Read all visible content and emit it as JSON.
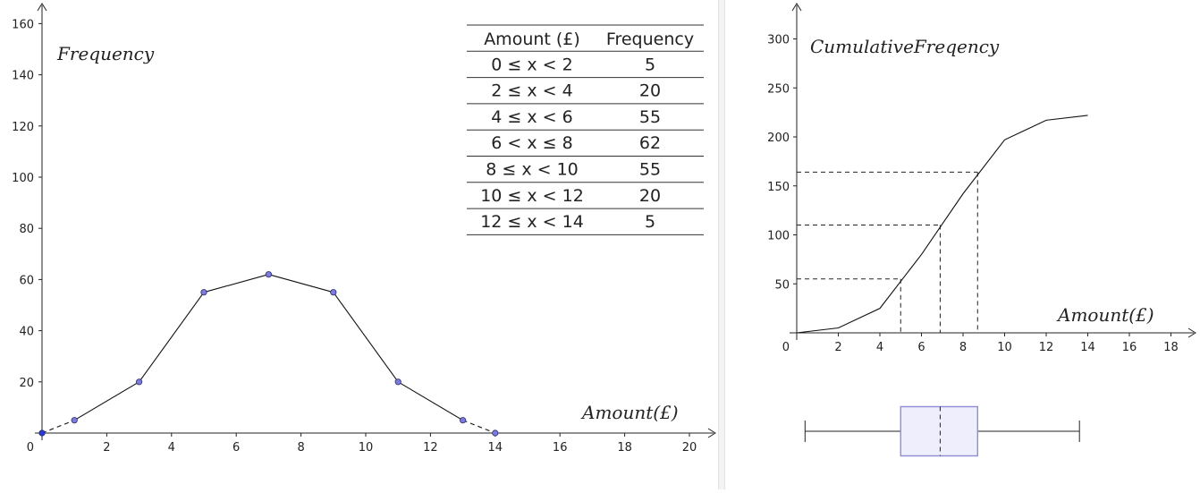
{
  "views": [
    {
      "name": "frequency-polygon",
      "axis_label_y": "Frequency",
      "axis_label_x": "Amount(£)"
    },
    {
      "name": "cumulative-frequency",
      "axis_label_y": "CumulativeFreqency",
      "axis_label_x": "Amount(£)"
    }
  ],
  "table": {
    "headers": [
      "Amount (£)",
      "Frequency"
    ],
    "rows": [
      [
        "0 ≤ x < 2",
        "5"
      ],
      [
        "2 ≤ x < 4",
        "20"
      ],
      [
        "4 ≤ x < 6",
        "55"
      ],
      [
        "6 < x ≤ 8",
        "62"
      ],
      [
        "8 ≤ x < 10",
        "55"
      ],
      [
        "10 ≤ x < 12",
        "20"
      ],
      [
        "12 ≤ x < 14",
        "5"
      ]
    ]
  },
  "chart_data": [
    {
      "type": "line",
      "title": "",
      "xlabel": "Amount(£)",
      "ylabel": "Frequency",
      "xlim": [
        0,
        20
      ],
      "ylim": [
        0,
        160
      ],
      "x_ticks": [
        2,
        4,
        6,
        8,
        10,
        12,
        14,
        16,
        18,
        20
      ],
      "y_ticks": [
        20,
        40,
        60,
        80,
        100,
        120,
        140,
        160
      ],
      "origin_label": "0",
      "series": [
        {
          "x": [
            0,
            1,
            3,
            5,
            7,
            9,
            11,
            13,
            14
          ],
          "y": [
            0,
            5,
            20,
            55,
            62,
            55,
            20,
            5,
            0
          ],
          "markers": true,
          "dashed_end_segments": true
        }
      ],
      "colors": {
        "line": "#000000",
        "marker": "#7c7cdc",
        "marker_origin": "#2a3bd1"
      }
    },
    {
      "type": "line",
      "title": "",
      "xlabel": "Amount(£)",
      "ylabel": "CumulativeFreqency",
      "xlim": [
        0,
        18.7
      ],
      "ylim": [
        0,
        300
      ],
      "x_ticks": [
        2,
        4,
        6,
        8,
        10,
        12,
        14,
        16,
        18
      ],
      "y_ticks": [
        50,
        100,
        150,
        200,
        250,
        300
      ],
      "origin_label": "0",
      "series": [
        {
          "x": [
            0,
            2,
            4,
            6,
            8,
            10,
            12,
            14
          ],
          "y": [
            0,
            5,
            25,
            80,
            142,
            197,
            217,
            222
          ]
        }
      ],
      "guides": [
        {
          "x": 5.0,
          "y": 55
        },
        {
          "x": 6.9,
          "y": 110
        },
        {
          "x": 8.7,
          "y": 164
        }
      ],
      "boxplot": {
        "min": 0.4,
        "q1": 5.0,
        "median": 6.9,
        "q3": 8.7,
        "max": 13.6,
        "fill": "#eeeefc",
        "stroke": "#8d8dd6"
      }
    }
  ]
}
